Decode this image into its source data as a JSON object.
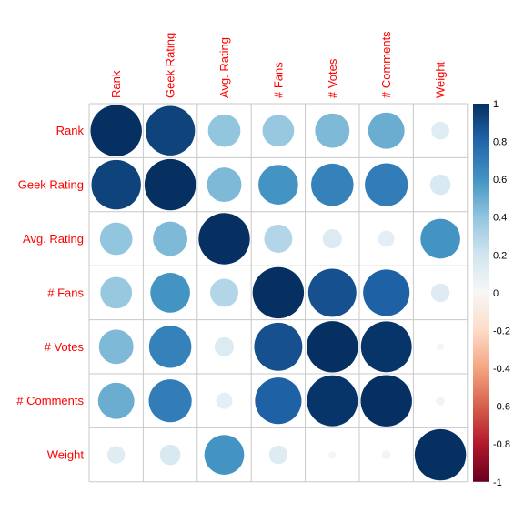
{
  "chart_data": {
    "type": "heatmap",
    "style": "corrplot-circle",
    "variables": [
      "Rank",
      "Geek Rating",
      "Avg. Rating",
      "# Fans",
      "# Votes",
      "# Comments",
      "Weight"
    ],
    "matrix": [
      [
        1.0,
        0.93,
        0.4,
        0.38,
        0.45,
        0.5,
        0.12
      ],
      [
        0.93,
        1.0,
        0.45,
        0.6,
        0.68,
        0.7,
        0.16
      ],
      [
        0.4,
        0.45,
        1.0,
        0.3,
        0.14,
        0.1,
        0.6
      ],
      [
        0.38,
        0.6,
        0.3,
        1.0,
        0.88,
        0.82,
        0.13
      ],
      [
        0.45,
        0.68,
        0.14,
        0.88,
        1.0,
        0.98,
        0.02
      ],
      [
        0.5,
        0.7,
        0.1,
        0.82,
        0.98,
        1.0,
        0.03
      ],
      [
        0.12,
        0.16,
        0.6,
        0.13,
        0.02,
        0.03,
        1.0
      ]
    ],
    "colorbar": {
      "ticks": [
        "1",
        "0.8",
        "0.6",
        "0.4",
        "0.2",
        "0",
        "-0.2",
        "-0.4",
        "-0.6",
        "-0.8",
        "-1"
      ],
      "range": [
        -1,
        1
      ]
    },
    "label_color": "#ff0000",
    "grid": true
  }
}
